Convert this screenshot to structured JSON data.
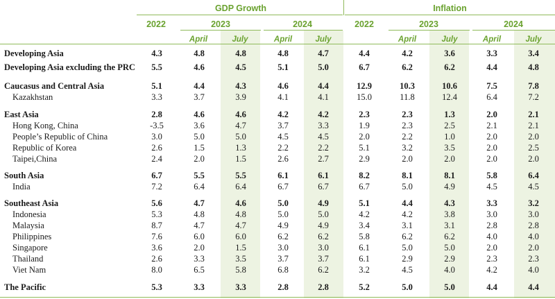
{
  "groups": {
    "gdp": "GDP Growth",
    "inflation": "Inflation"
  },
  "years": {
    "y2022": "2022",
    "y2023": "2023",
    "y2024": "2024"
  },
  "months": {
    "april": "April",
    "july": "July"
  },
  "rows": [
    {
      "label": "Developing Asia",
      "bold": true,
      "values": [
        "4.3",
        "4.8",
        "4.8",
        "4.8",
        "4.7",
        "4.4",
        "4.2",
        "3.6",
        "3.3",
        "3.4"
      ]
    },
    {
      "label": "Developing Asia excluding the PRC",
      "bold": true,
      "values": [
        "5.5",
        "4.6",
        "4.5",
        "5.1",
        "5.0",
        "6.7",
        "6.2",
        "6.2",
        "4.4",
        "4.8"
      ]
    },
    {
      "label": "Caucasus and Central Asia",
      "bold": true,
      "values": [
        "5.1",
        "4.4",
        "4.3",
        "4.6",
        "4.4",
        "12.9",
        "10.3",
        "10.6",
        "7.5",
        "7.8"
      ]
    },
    {
      "label": "Kazakhstan",
      "bold": false,
      "values": [
        "3.3",
        "3.7",
        "3.9",
        "4.1",
        "4.1",
        "15.0",
        "11.8",
        "12.4",
        "6.4",
        "7.2"
      ]
    },
    {
      "label": "East Asia",
      "bold": true,
      "values": [
        "2.8",
        "4.6",
        "4.6",
        "4.2",
        "4.2",
        "2.3",
        "2.3",
        "1.3",
        "2.0",
        "2.1"
      ]
    },
    {
      "label": "Hong Kong, China",
      "bold": false,
      "values": [
        "-3.5",
        "3.6",
        "4.7",
        "3.7",
        "3.3",
        "1.9",
        "2.3",
        "2.5",
        "2.1",
        "2.1"
      ]
    },
    {
      "label": "People’s Republic of China",
      "bold": false,
      "values": [
        "3.0",
        "5.0",
        "5.0",
        "4.5",
        "4.5",
        "2.0",
        "2.2",
        "1.0",
        "2.0",
        "2.0"
      ]
    },
    {
      "label": "Republic of Korea",
      "bold": false,
      "values": [
        "2.6",
        "1.5",
        "1.3",
        "2.2",
        "2.2",
        "5.1",
        "3.2",
        "3.5",
        "2.0",
        "2.5"
      ]
    },
    {
      "label": "Taipei,China",
      "bold": false,
      "values": [
        "2.4",
        "2.0",
        "1.5",
        "2.6",
        "2.7",
        "2.9",
        "2.0",
        "2.0",
        "2.0",
        "2.0"
      ]
    },
    {
      "label": "South Asia",
      "bold": true,
      "values": [
        "6.7",
        "5.5",
        "5.5",
        "6.1",
        "6.1",
        "8.2",
        "8.1",
        "8.1",
        "5.8",
        "6.4"
      ]
    },
    {
      "label": "India",
      "bold": false,
      "values": [
        "7.2",
        "6.4",
        "6.4",
        "6.7",
        "6.7",
        "6.7",
        "5.0",
        "4.9",
        "4.5",
        "4.5"
      ]
    },
    {
      "label": "Southeast Asia",
      "bold": true,
      "values": [
        "5.6",
        "4.7",
        "4.6",
        "5.0",
        "4.9",
        "5.1",
        "4.4",
        "4.3",
        "3.3",
        "3.2"
      ]
    },
    {
      "label": "Indonesia",
      "bold": false,
      "values": [
        "5.3",
        "4.8",
        "4.8",
        "5.0",
        "5.0",
        "4.2",
        "4.2",
        "3.8",
        "3.0",
        "3.0"
      ]
    },
    {
      "label": "Malaysia",
      "bold": false,
      "values": [
        "8.7",
        "4.7",
        "4.7",
        "4.9",
        "4.9",
        "3.4",
        "3.1",
        "3.1",
        "2.8",
        "2.8"
      ]
    },
    {
      "label": "Philippines",
      "bold": false,
      "values": [
        "7.6",
        "6.0",
        "6.0",
        "6.2",
        "6.2",
        "5.8",
        "6.2",
        "6.2",
        "4.0",
        "4.0"
      ]
    },
    {
      "label": "Singapore",
      "bold": false,
      "values": [
        "3.6",
        "2.0",
        "1.5",
        "3.0",
        "3.0",
        "6.1",
        "5.0",
        "5.0",
        "2.0",
        "2.0"
      ]
    },
    {
      "label": "Thailand",
      "bold": false,
      "values": [
        "2.6",
        "3.3",
        "3.5",
        "3.7",
        "3.7",
        "6.1",
        "2.9",
        "2.9",
        "2.3",
        "2.3"
      ]
    },
    {
      "label": "Viet Nam",
      "bold": false,
      "values": [
        "8.0",
        "6.5",
        "5.8",
        "6.8",
        "6.2",
        "3.2",
        "4.5",
        "4.0",
        "4.2",
        "4.0"
      ]
    },
    {
      "label": "The Pacific",
      "bold": true,
      "values": [
        "5.3",
        "3.3",
        "3.3",
        "2.8",
        "2.8",
        "5.2",
        "5.0",
        "5.0",
        "4.4",
        "4.4"
      ]
    }
  ]
}
